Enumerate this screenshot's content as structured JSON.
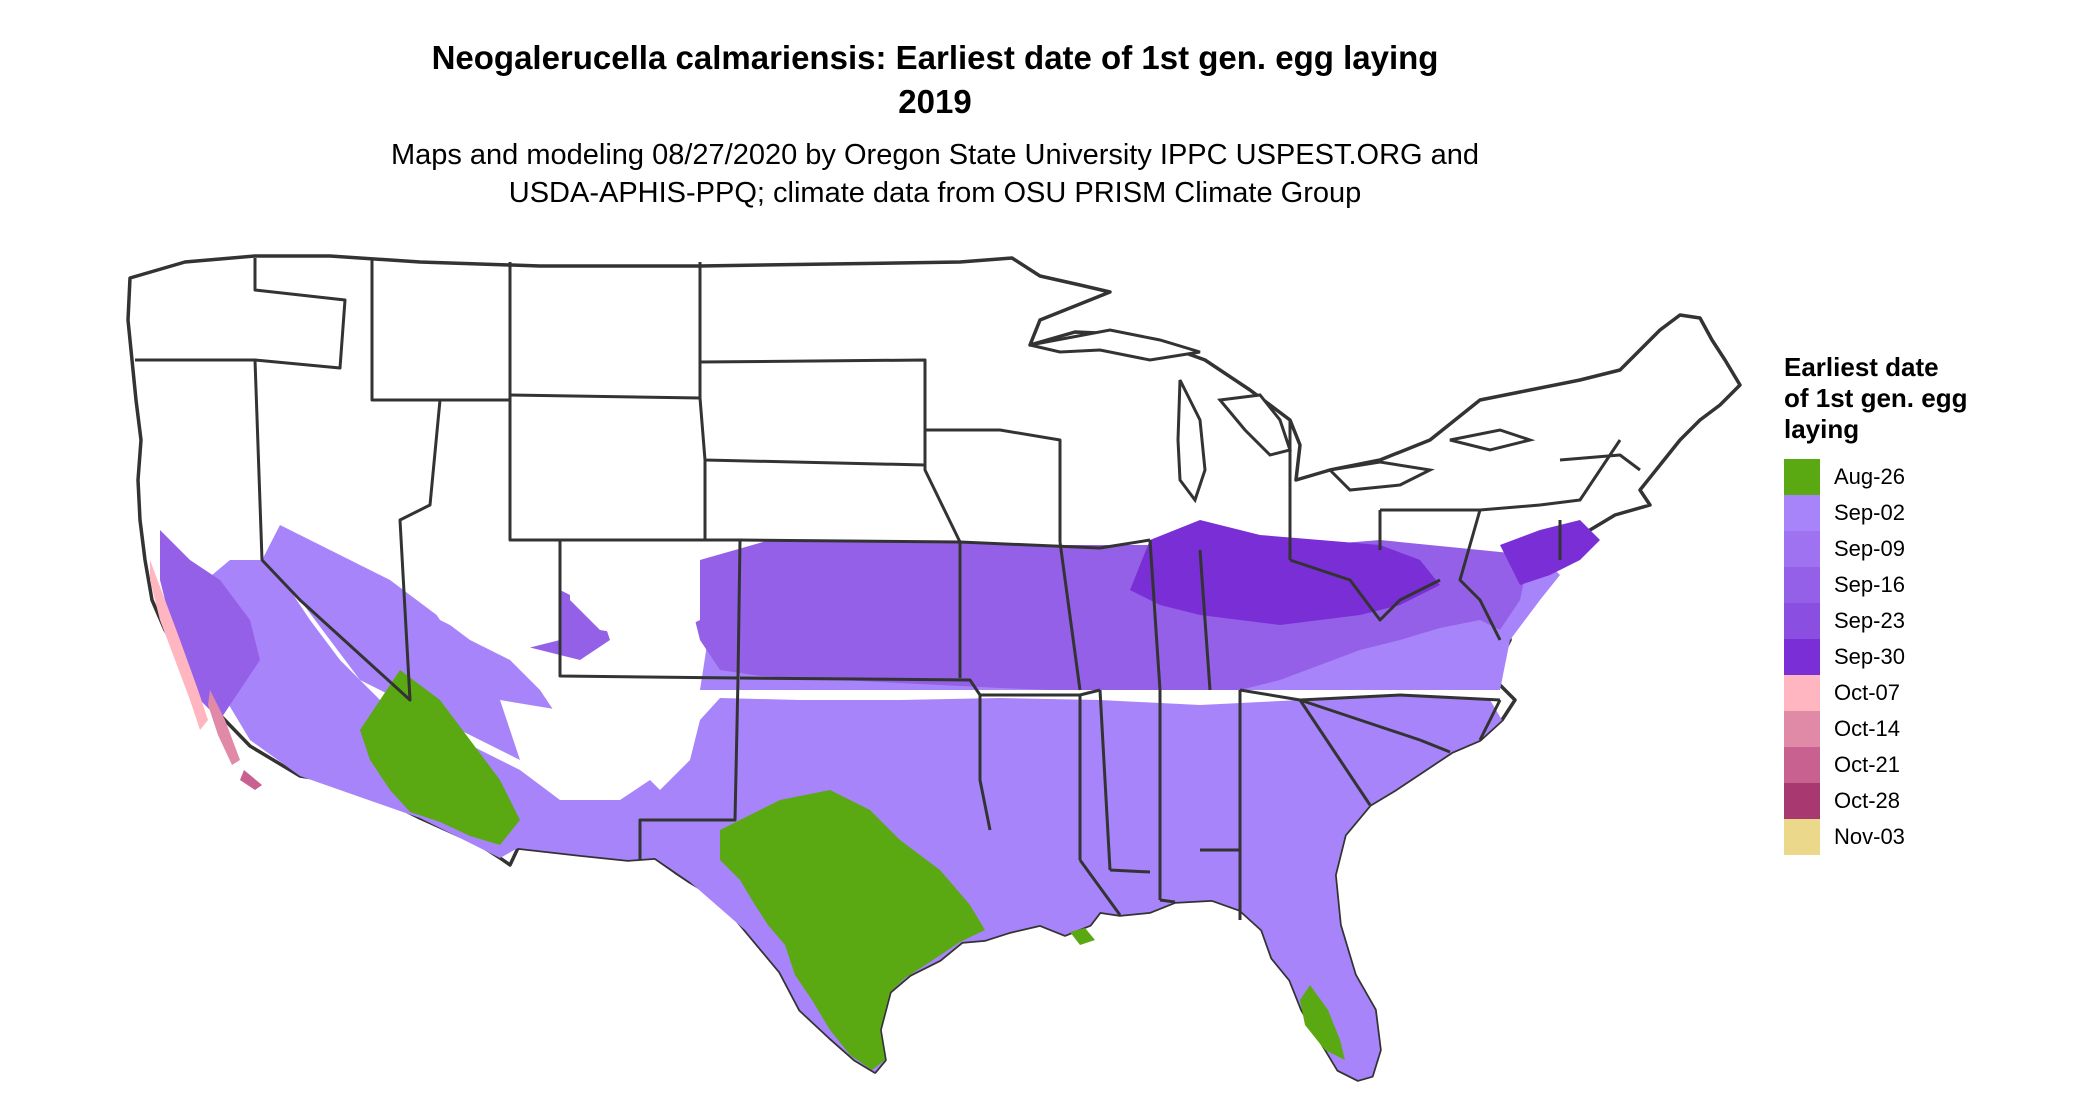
{
  "header": {
    "title_line1": "Neogalerucella calmariensis: Earliest date of 1st gen. egg laying",
    "title_line2": "2019",
    "subtitle_line1": "Maps and modeling 08/27/2020 by Oregon State University IPPC USPEST.ORG and",
    "subtitle_line2": "USDA-APHIS-PPQ; climate data from OSU PRISM Climate Group"
  },
  "legend": {
    "title_line1": "Earliest date",
    "title_line2": "of 1st gen. egg",
    "title_line3": "laying",
    "items": [
      {
        "label": "Aug-26",
        "color": "#5aa812"
      },
      {
        "label": "Sep-02",
        "color": "#a884fa"
      },
      {
        "label": "Sep-09",
        "color": "#9e72f0"
      },
      {
        "label": "Sep-16",
        "color": "#9460e8"
      },
      {
        "label": "Sep-23",
        "color": "#8a4ee0"
      },
      {
        "label": "Sep-30",
        "color": "#7a2ed6"
      },
      {
        "label": "Oct-07",
        "color": "#ffb6c1"
      },
      {
        "label": "Oct-14",
        "color": "#e08aa8"
      },
      {
        "label": "Oct-21",
        "color": "#c86090"
      },
      {
        "label": "Oct-28",
        "color": "#a83870"
      },
      {
        "label": "Nov-03",
        "color": "#ecd88a"
      }
    ]
  }
}
